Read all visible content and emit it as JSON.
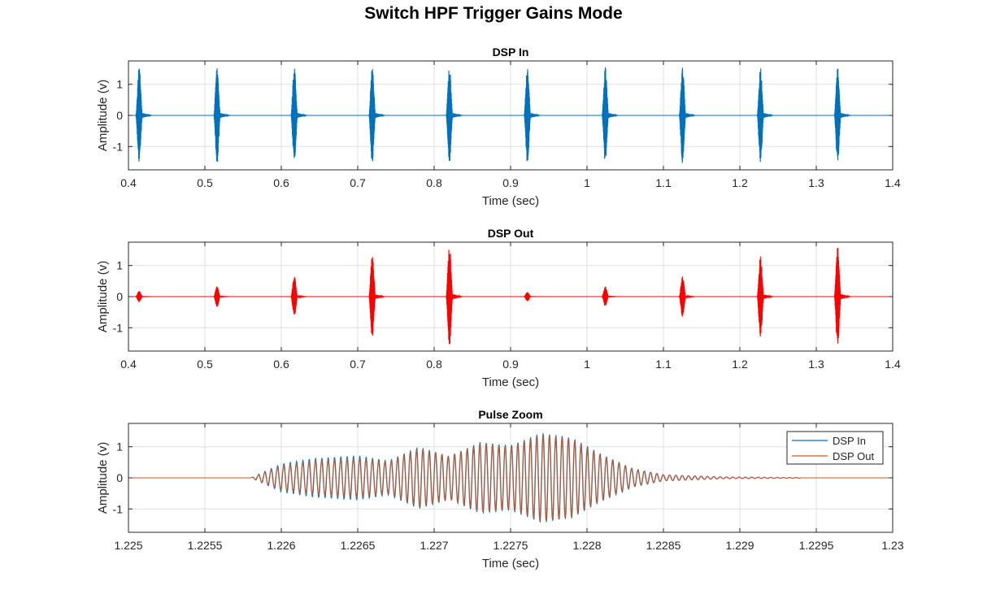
{
  "figure_title": "Switch HPF Trigger Gains Mode",
  "colors": {
    "dsp_in": "#0072BD",
    "dsp_out_panel": "#FF0000",
    "dsp_out_zoom": "#D95319",
    "grid": "#DFDFDF",
    "axes": "#262626"
  },
  "chart_data": [
    {
      "type": "line",
      "title": "DSP In",
      "xlabel": "Time (sec)",
      "ylabel": "Amplitude (v)",
      "xlim": [
        0.4,
        1.4
      ],
      "ylim": [
        -1.75,
        1.75
      ],
      "grid": true,
      "xticks": [
        0.4,
        0.5,
        0.6,
        0.7,
        0.8,
        0.9,
        1.0,
        1.1,
        1.2,
        1.3,
        1.4
      ],
      "xtick_labels": [
        "0.4",
        "0.5",
        "0.6",
        "0.7",
        "0.8",
        "0.9",
        "1",
        "1.1",
        "1.2",
        "1.3",
        "1.4"
      ],
      "yticks": [
        -1,
        0,
        1
      ],
      "ytick_labels": [
        "-1",
        "0",
        "1"
      ],
      "series": [
        {
          "color": "#0072BD",
          "pulses": [
            {
              "t": 0.414,
              "amp": 1.55
            },
            {
              "t": 0.516,
              "amp": 1.55
            },
            {
              "t": 0.617,
              "amp": 1.55
            },
            {
              "t": 0.719,
              "amp": 1.55
            },
            {
              "t": 0.82,
              "amp": 1.55
            },
            {
              "t": 0.922,
              "amp": 1.55
            },
            {
              "t": 1.024,
              "amp": 1.55
            },
            {
              "t": 1.125,
              "amp": 1.55
            },
            {
              "t": 1.227,
              "amp": 1.55
            },
            {
              "t": 1.328,
              "amp": 1.55
            }
          ]
        }
      ]
    },
    {
      "type": "line",
      "title": "DSP Out",
      "xlabel": "Time (sec)",
      "ylabel": "Amplitude (v)",
      "xlim": [
        0.4,
        1.4
      ],
      "ylim": [
        -1.75,
        1.75
      ],
      "grid": true,
      "xticks": [
        0.4,
        0.5,
        0.6,
        0.7,
        0.8,
        0.9,
        1.0,
        1.1,
        1.2,
        1.3,
        1.4
      ],
      "xtick_labels": [
        "0.4",
        "0.5",
        "0.6",
        "0.7",
        "0.8",
        "0.9",
        "1",
        "1.1",
        "1.2",
        "1.3",
        "1.4"
      ],
      "yticks": [
        -1,
        0,
        1
      ],
      "ytick_labels": [
        "-1",
        "0",
        "1"
      ],
      "series": [
        {
          "color": "#FF0000",
          "pulses": [
            {
              "t": 0.414,
              "amp": 0.18
            },
            {
              "t": 0.516,
              "amp": 0.33
            },
            {
              "t": 0.617,
              "amp": 0.65
            },
            {
              "t": 0.719,
              "amp": 1.32
            },
            {
              "t": 0.82,
              "amp": 1.62
            },
            {
              "t": 0.922,
              "amp": 0.15
            },
            {
              "t": 1.024,
              "amp": 0.32
            },
            {
              "t": 1.125,
              "amp": 0.65
            },
            {
              "t": 1.227,
              "amp": 1.33
            },
            {
              "t": 1.328,
              "amp": 1.62
            }
          ]
        }
      ]
    },
    {
      "type": "line",
      "title": "Pulse Zoom",
      "xlabel": "Time (sec)",
      "ylabel": "Amplitude (v)",
      "xlim": [
        1.225,
        1.23
      ],
      "ylim": [
        -1.75,
        1.75
      ],
      "grid": true,
      "legend": "top-right",
      "xticks": [
        1.225,
        1.2255,
        1.226,
        1.2265,
        1.227,
        1.2275,
        1.228,
        1.2285,
        1.229,
        1.2295,
        1.23
      ],
      "xtick_labels": [
        "1.225",
        "1.2255",
        "1.226",
        "1.2265",
        "1.227",
        "1.2275",
        "1.228",
        "1.2285",
        "1.229",
        "1.2295",
        "1.23"
      ],
      "yticks": [
        -1,
        0,
        1
      ],
      "ytick_labels": [
        "-1",
        "0",
        "1"
      ],
      "signal": {
        "start": 1.2258,
        "end": 1.2294,
        "cycles": 87
      },
      "series": [
        {
          "name": "DSP In",
          "color": "#0072BD",
          "envelope": [
            {
              "t": 1.2258,
              "amp": 0.0
            },
            {
              "t": 1.226,
              "amp": 0.45
            },
            {
              "t": 1.2262,
              "amp": 0.62
            },
            {
              "t": 1.2265,
              "amp": 0.72
            },
            {
              "t": 1.2267,
              "amp": 0.55
            },
            {
              "t": 1.2269,
              "amp": 1.0
            },
            {
              "t": 1.2271,
              "amp": 0.7
            },
            {
              "t": 1.2273,
              "amp": 1.15
            },
            {
              "t": 1.2275,
              "amp": 1.05
            },
            {
              "t": 1.2277,
              "amp": 1.45
            },
            {
              "t": 1.2279,
              "amp": 1.3
            },
            {
              "t": 1.2281,
              "amp": 0.75
            },
            {
              "t": 1.2283,
              "amp": 0.3
            },
            {
              "t": 1.2285,
              "amp": 0.1
            },
            {
              "t": 1.2289,
              "amp": 0.03
            },
            {
              "t": 1.2294,
              "amp": 0.01
            }
          ]
        },
        {
          "name": "DSP Out",
          "color": "#D95319",
          "envelope": [
            {
              "t": 1.2258,
              "amp": 0.0
            },
            {
              "t": 1.226,
              "amp": 0.38
            },
            {
              "t": 1.2262,
              "amp": 0.52
            },
            {
              "t": 1.2265,
              "amp": 0.62
            },
            {
              "t": 1.2267,
              "amp": 0.5
            },
            {
              "t": 1.2269,
              "amp": 0.95
            },
            {
              "t": 1.2271,
              "amp": 0.68
            },
            {
              "t": 1.2273,
              "amp": 1.1
            },
            {
              "t": 1.2275,
              "amp": 1.0
            },
            {
              "t": 1.2277,
              "amp": 1.4
            },
            {
              "t": 1.2279,
              "amp": 1.25
            },
            {
              "t": 1.2281,
              "amp": 0.7
            },
            {
              "t": 1.2283,
              "amp": 0.28
            },
            {
              "t": 1.2285,
              "amp": 0.1
            },
            {
              "t": 1.2289,
              "amp": 0.03
            },
            {
              "t": 1.2294,
              "amp": 0.01
            }
          ]
        }
      ]
    }
  ]
}
